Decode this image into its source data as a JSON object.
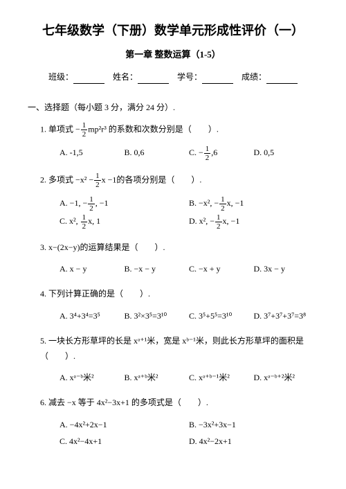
{
  "title": "七年级数学（下册）数学单元形成性评价（一）",
  "subtitle": "第一章 整数运算（1-5）",
  "info": {
    "class_label": "班级：",
    "name_label": "姓名：",
    "id_label": "学号：",
    "score_label": "成绩："
  },
  "section1_head": "一、选择题（每小题 3 分，满分 24 分）.",
  "questions": [
    {
      "num": "1.",
      "stem_pre": "单项式 −",
      "stem_frac_num": "1",
      "stem_frac_den": "2",
      "stem_mid": "mp²r³ 的系数和次数分别是（",
      "stem_end": "）.",
      "options": [
        {
          "k": "A.",
          "t": "-1,5"
        },
        {
          "k": "B.",
          "t": "0,6"
        },
        {
          "k": "C.",
          "t": "",
          "has_frac": true,
          "pre": "−",
          "fn": "1",
          "fd": "2",
          "post": ",6"
        },
        {
          "k": "D.",
          "t": "0,5"
        }
      ],
      "cols": 4
    },
    {
      "num": "2.",
      "stem_pre": "多项式 −x² −",
      "stem_frac_num": "1",
      "stem_frac_den": "2",
      "stem_mid": "x −1的各项分别是（",
      "stem_end": "）.",
      "options": [
        {
          "k": "A.",
          "t": "",
          "has_frac": true,
          "pre": "−1, −",
          "fn": "1",
          "fd": "2",
          "post": ", −1"
        },
        {
          "k": "B.",
          "t": "",
          "has_frac": true,
          "pre": "−x², −",
          "fn": "1",
          "fd": "2",
          "post": "x, −1"
        },
        {
          "k": "C.",
          "t": "",
          "has_frac": true,
          "pre": "x², ",
          "fn": "1",
          "fd": "2",
          "post": "x, 1"
        },
        {
          "k": "D.",
          "t": "",
          "has_frac": true,
          "pre": "x², −",
          "fn": "1",
          "fd": "2",
          "post": "x, −1"
        }
      ],
      "cols": 2
    },
    {
      "num": "3.",
      "stem_plain": "x−(2x−y)的运算结果是（　　）.",
      "options": [
        {
          "k": "A.",
          "t": "x − y"
        },
        {
          "k": "B.",
          "t": "−x − y"
        },
        {
          "k": "C.",
          "t": "−x + y"
        },
        {
          "k": "D.",
          "t": "3x − y"
        }
      ],
      "cols": 4
    },
    {
      "num": "4.",
      "stem_plain": "下列计算正确的是（　　）.",
      "options": [
        {
          "k": "A.",
          "t": "3⁴+3⁴=3⁵"
        },
        {
          "k": "B.",
          "t": "3²×3⁵=3¹⁰"
        },
        {
          "k": "C.",
          "t": "3⁵+5⁵=3¹⁰"
        },
        {
          "k": "D.",
          "t": "3⁷+3⁷+3⁷=3⁸"
        }
      ],
      "cols": 4
    },
    {
      "num": "5.",
      "stem_plain": "一块长方形草坪的长是 xᵃ⁺¹米，宽是 xᵇ⁻¹米，则此长方形草坪的面积是（　　）.",
      "options": [
        {
          "k": "A.",
          "t": "xᵃ⁻ᵇ米²"
        },
        {
          "k": "B.",
          "t": "xᵃ⁺ᵇ米²"
        },
        {
          "k": "C.",
          "t": "xᵃ⁺ᵇ⁻¹米²"
        },
        {
          "k": "D.",
          "t": "xᵃ⁻ᵇ⁺²米²"
        }
      ],
      "cols": 4
    },
    {
      "num": "6.",
      "stem_plain": "减去 −x 等于 4x²−3x+1 的多项式是（　　）.",
      "options": [
        {
          "k": "A.",
          "t": "−4x²+2x−1"
        },
        {
          "k": "B.",
          "t": "−3x²+3x−1"
        },
        {
          "k": "C.",
          "t": "4x²−4x+1"
        },
        {
          "k": "D.",
          "t": "4x²−2x+1"
        }
      ],
      "cols": 2
    }
  ]
}
